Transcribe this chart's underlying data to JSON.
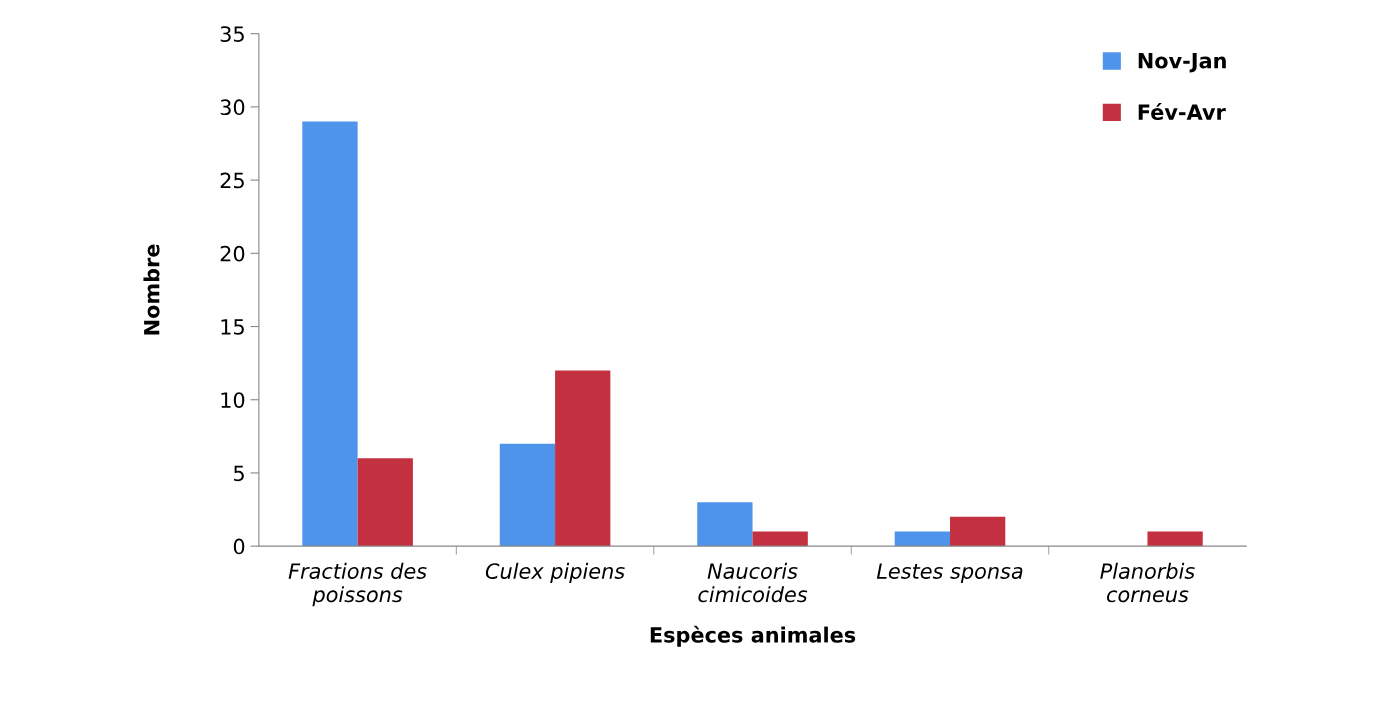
{
  "chart_data": {
    "type": "bar",
    "xlabel": "Espèces animales",
    "ylabel": "Nombre",
    "categories": [
      "Fractions des\npoissons",
      "Culex pipiens",
      "Naucoris\ncimicoides",
      "Lestes sponsa",
      "Planorbis\ncorneus"
    ],
    "series": [
      {
        "name": "Nov-Jan",
        "color": "#4f94eb",
        "values": [
          29,
          7,
          3,
          1,
          0
        ]
      },
      {
        "name": "Fév-Avr",
        "color": "#c3303f",
        "values": [
          6,
          12,
          1,
          2,
          1
        ]
      }
    ],
    "ylim": [
      0,
      35
    ],
    "yticks": [
      0,
      5,
      10,
      15,
      20,
      25,
      30,
      35
    ],
    "grid": false,
    "legend": "top right"
  }
}
